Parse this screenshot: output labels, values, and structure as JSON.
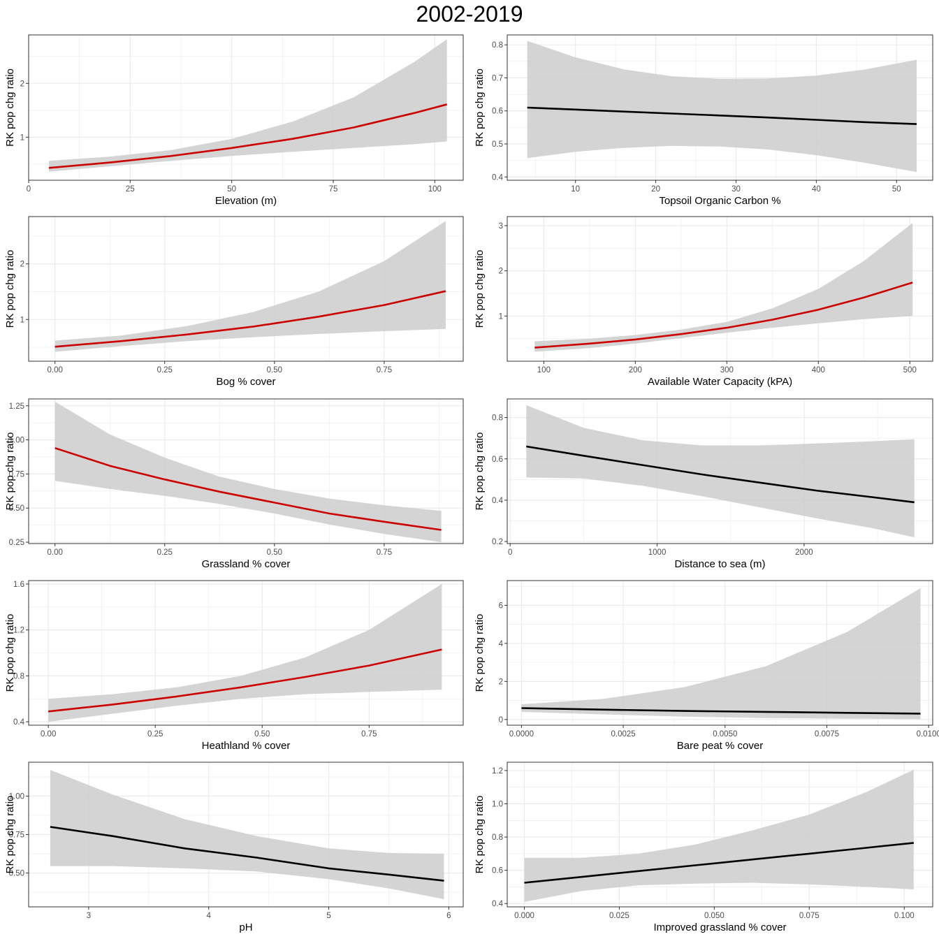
{
  "figure": {
    "title": "2002-2019",
    "colors": {
      "ribbon": "#cccccc",
      "significant": "#cc0000",
      "not_significant": "#000000",
      "grid": "#ebebeb",
      "border": "#333333"
    }
  },
  "chart_data": [
    {
      "type": "line",
      "xlabel": "Elevation (m)",
      "ylabel": "RK pop chg ratio",
      "xlim": [
        0,
        107
      ],
      "ylim": [
        0.2,
        2.9
      ],
      "xticks": [
        0,
        25,
        50,
        75,
        100
      ],
      "xtick_labels": [
        "0",
        "25",
        "50",
        "75",
        "100"
      ],
      "yticks": [
        1,
        2
      ],
      "ytick_labels": [
        "1",
        "2"
      ],
      "line_color": "#cc0000",
      "x": [
        5,
        20,
        35,
        50,
        65,
        80,
        95,
        103
      ],
      "y": [
        0.43,
        0.53,
        0.65,
        0.8,
        0.97,
        1.18,
        1.45,
        1.61
      ],
      "lower": [
        0.36,
        0.46,
        0.56,
        0.65,
        0.73,
        0.8,
        0.87,
        0.92
      ],
      "upper": [
        0.56,
        0.64,
        0.76,
        0.97,
        1.29,
        1.74,
        2.4,
        2.82
      ]
    },
    {
      "type": "line",
      "xlabel": "Topsoil Organic Carbon %",
      "ylabel": "RK pop chg ratio",
      "xlim": [
        1.5,
        54.5
      ],
      "ylim": [
        0.39,
        0.83
      ],
      "xticks": [
        10,
        20,
        30,
        40,
        50
      ],
      "xtick_labels": [
        "10",
        "20",
        "30",
        "40",
        "50"
      ],
      "yticks": [
        0.4,
        0.5,
        0.6,
        0.7,
        0.8
      ],
      "ytick_labels": [
        "0.4",
        "0.5",
        "0.6",
        "0.7",
        "0.8"
      ],
      "line_color": "#000000",
      "x": [
        4,
        10,
        16,
        22,
        28,
        34,
        40,
        46,
        52.5
      ],
      "y": [
        0.61,
        0.604,
        0.598,
        0.592,
        0.586,
        0.58,
        0.573,
        0.566,
        0.56
      ],
      "lower": [
        0.457,
        0.476,
        0.488,
        0.494,
        0.492,
        0.483,
        0.466,
        0.443,
        0.415
      ],
      "upper": [
        0.812,
        0.762,
        0.726,
        0.705,
        0.697,
        0.698,
        0.707,
        0.725,
        0.755
      ]
    },
    {
      "type": "line",
      "xlabel": "Bog % cover",
      "ylabel": "RK pop chg ratio",
      "xlim": [
        -0.06,
        0.93
      ],
      "ylim": [
        0.25,
        2.85
      ],
      "xticks": [
        0,
        0.25,
        0.5,
        0.75
      ],
      "xtick_labels": [
        "0.00",
        "0.25",
        "0.50",
        "0.75"
      ],
      "yticks": [
        1,
        2
      ],
      "ytick_labels": [
        "1",
        "2"
      ],
      "line_color": "#cc0000",
      "x": [
        0,
        0.15,
        0.3,
        0.45,
        0.6,
        0.75,
        0.89
      ],
      "y": [
        0.51,
        0.61,
        0.73,
        0.87,
        1.05,
        1.26,
        1.51
      ],
      "lower": [
        0.42,
        0.52,
        0.61,
        0.68,
        0.74,
        0.79,
        0.83
      ],
      "upper": [
        0.62,
        0.71,
        0.88,
        1.13,
        1.5,
        2.05,
        2.77
      ]
    },
    {
      "type": "line",
      "xlabel": "Available Water Capacity (kPA)",
      "ylabel": "RK pop chg ratio",
      "xlim": [
        60,
        525
      ],
      "ylim": [
        0.0,
        3.2
      ],
      "xticks": [
        100,
        200,
        300,
        400,
        500
      ],
      "xtick_labels": [
        "100",
        "200",
        "300",
        "400",
        "500"
      ],
      "yticks": [
        1,
        2,
        3
      ],
      "ytick_labels": [
        "1",
        "2",
        "3"
      ],
      "line_color": "#cc0000",
      "x": [
        90,
        150,
        200,
        250,
        300,
        350,
        400,
        450,
        503
      ],
      "y": [
        0.3,
        0.39,
        0.48,
        0.6,
        0.74,
        0.92,
        1.14,
        1.41,
        1.74
      ],
      "lower": [
        0.21,
        0.29,
        0.39,
        0.51,
        0.63,
        0.74,
        0.84,
        0.93,
        1.0
      ],
      "upper": [
        0.44,
        0.5,
        0.58,
        0.7,
        0.87,
        1.17,
        1.6,
        2.22,
        3.06
      ]
    },
    {
      "type": "line",
      "xlabel": "Grassland % cover",
      "ylabel": "RK pop chg ratio",
      "xlim": [
        -0.06,
        0.93
      ],
      "ylim": [
        0.24,
        1.3
      ],
      "xticks": [
        0,
        0.25,
        0.5,
        0.75
      ],
      "xtick_labels": [
        "0.00",
        "0.25",
        "0.50",
        "0.75"
      ],
      "yticks": [
        0.25,
        0.5,
        0.75,
        1.0,
        1.25
      ],
      "ytick_labels": [
        "0.25",
        "0.50",
        "0.75",
        "1.00",
        "1.25"
      ],
      "line_color": "#cc0000",
      "x": [
        0,
        0.125,
        0.25,
        0.375,
        0.5,
        0.625,
        0.75,
        0.88
      ],
      "y": [
        0.94,
        0.81,
        0.71,
        0.62,
        0.54,
        0.46,
        0.4,
        0.34
      ],
      "lower": [
        0.7,
        0.64,
        0.59,
        0.53,
        0.46,
        0.38,
        0.31,
        0.25
      ],
      "upper": [
        1.28,
        1.04,
        0.87,
        0.73,
        0.64,
        0.57,
        0.52,
        0.48
      ]
    },
    {
      "type": "line",
      "xlabel": "Distance to sea (m)",
      "ylabel": "RK pop chg ratio",
      "xlim": [
        -20,
        2875
      ],
      "ylim": [
        0.19,
        0.89
      ],
      "xticks": [
        0,
        1000,
        2000
      ],
      "xtick_labels": [
        "0",
        "1000",
        "2000"
      ],
      "yticks": [
        0.2,
        0.4,
        0.6,
        0.8
      ],
      "ytick_labels": [
        "0.2",
        "0.4",
        "0.6",
        "0.8"
      ],
      "line_color": "#000000",
      "x": [
        110,
        500,
        900,
        1300,
        1700,
        2100,
        2460,
        2750
      ],
      "y": [
        0.66,
        0.615,
        0.57,
        0.525,
        0.485,
        0.445,
        0.415,
        0.39
      ],
      "lower": [
        0.51,
        0.505,
        0.47,
        0.42,
        0.365,
        0.31,
        0.265,
        0.22
      ],
      "upper": [
        0.86,
        0.75,
        0.69,
        0.665,
        0.665,
        0.675,
        0.685,
        0.695
      ]
    },
    {
      "type": "line",
      "xlabel": "Heathland % cover",
      "ylabel": "RK pop chg ratio",
      "xlim": [
        -0.046,
        0.97
      ],
      "ylim": [
        0.37,
        1.63
      ],
      "xticks": [
        0,
        0.25,
        0.5,
        0.75
      ],
      "xtick_labels": [
        "0.00",
        "0.25",
        "0.50",
        "0.75"
      ],
      "yticks": [
        0.4,
        0.8,
        1.2,
        1.6
      ],
      "ytick_labels": [
        "0.4",
        "0.8",
        "1.2",
        "1.6"
      ],
      "line_color": "#cc0000",
      "x": [
        0,
        0.15,
        0.3,
        0.45,
        0.6,
        0.75,
        0.92
      ],
      "y": [
        0.49,
        0.55,
        0.62,
        0.7,
        0.79,
        0.89,
        1.03
      ],
      "lower": [
        0.4,
        0.47,
        0.54,
        0.6,
        0.64,
        0.66,
        0.68
      ],
      "upper": [
        0.6,
        0.64,
        0.7,
        0.8,
        0.96,
        1.2,
        1.6
      ]
    },
    {
      "type": "line",
      "xlabel": "Bare peat % cover",
      "ylabel": "RK pop chg ratio",
      "xlim": [
        -0.00035,
        0.0101
      ],
      "ylim": [
        -0.3,
        7.3
      ],
      "xticks": [
        0,
        0.0025,
        0.005,
        0.0075,
        0.01
      ],
      "xtick_labels": [
        "0.0000",
        "0.0025",
        "0.0050",
        "0.0075",
        "0.0100"
      ],
      "yticks": [
        0,
        2,
        4,
        6
      ],
      "ytick_labels": [
        "0",
        "2",
        "4",
        "6"
      ],
      "line_color": "#000000",
      "x": [
        0,
        0.002,
        0.004,
        0.006,
        0.008,
        0.0098
      ],
      "y": [
        0.6,
        0.52,
        0.45,
        0.4,
        0.35,
        0.31
      ],
      "lower": [
        0.4,
        0.27,
        0.15,
        0.08,
        0.04,
        0.02
      ],
      "upper": [
        0.8,
        1.08,
        1.7,
        2.8,
        4.6,
        6.9
      ]
    },
    {
      "type": "line",
      "xlabel": "pH",
      "ylabel": "RK pop chg ratio",
      "xlim": [
        2.5,
        6.12
      ],
      "ylim": [
        0.28,
        1.22
      ],
      "xticks": [
        3,
        4,
        5,
        6
      ],
      "xtick_labels": [
        "3",
        "4",
        "5",
        "6"
      ],
      "yticks": [
        0.5,
        0.75,
        1.0
      ],
      "ytick_labels": [
        "0.50",
        "0.75",
        "1.00"
      ],
      "line_color": "#000000",
      "x": [
        2.68,
        3.2,
        3.8,
        4.4,
        5.0,
        5.5,
        5.96
      ],
      "y": [
        0.8,
        0.74,
        0.66,
        0.6,
        0.53,
        0.49,
        0.45
      ],
      "lower": [
        0.545,
        0.545,
        0.53,
        0.51,
        0.46,
        0.4,
        0.33
      ],
      "upper": [
        1.17,
        1.01,
        0.85,
        0.74,
        0.66,
        0.63,
        0.625
      ]
    },
    {
      "type": "line",
      "xlabel": "Improved grassland % cover",
      "ylabel": "RK pop chg ratio",
      "xlim": [
        -0.0045,
        0.1075
      ],
      "ylim": [
        0.38,
        1.25
      ],
      "xticks": [
        0,
        0.025,
        0.05,
        0.075,
        0.1
      ],
      "xtick_labels": [
        "0.000",
        "0.025",
        "0.050",
        "0.075",
        "0.100"
      ],
      "yticks": [
        0.4,
        0.6,
        0.8,
        1.0,
        1.2
      ],
      "ytick_labels": [
        "0.4",
        "0.6",
        "0.8",
        "1.0",
        "1.2"
      ],
      "line_color": "#000000",
      "x": [
        0,
        0.015,
        0.03,
        0.045,
        0.06,
        0.075,
        0.09,
        0.1025
      ],
      "y": [
        0.525,
        0.56,
        0.595,
        0.63,
        0.665,
        0.7,
        0.735,
        0.765
      ],
      "lower": [
        0.41,
        0.475,
        0.51,
        0.52,
        0.525,
        0.515,
        0.5,
        0.485
      ],
      "upper": [
        0.675,
        0.675,
        0.7,
        0.755,
        0.84,
        0.935,
        1.07,
        1.205
      ]
    }
  ]
}
